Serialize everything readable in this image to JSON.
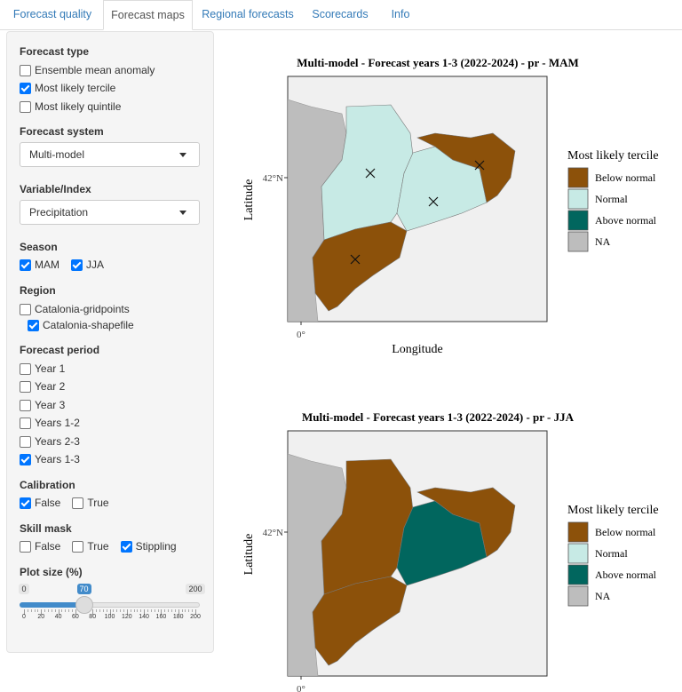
{
  "tabs": {
    "items": [
      "Forecast quality",
      "Forecast maps",
      "Regional forecasts",
      "Scorecards",
      "Info"
    ],
    "active": 1
  },
  "sidebar": {
    "groups": [
      {
        "label": "Forecast type",
        "options": [
          {
            "label": "Ensemble mean anomaly",
            "checked": false
          },
          {
            "label": "Most likely tercile",
            "checked": true
          },
          {
            "label": "Most likely quintile",
            "checked": false
          }
        ]
      },
      {
        "label": "Forecast system",
        "select": "Multi-model"
      },
      {
        "label": "Variable/Index",
        "select": "Precipitation"
      },
      {
        "label": "Season",
        "inline": true,
        "options": [
          {
            "label": "MAM",
            "checked": true
          },
          {
            "label": "JJA",
            "checked": true
          }
        ]
      },
      {
        "label": "Region",
        "options": [
          {
            "label": "Catalonia-gridpoints",
            "checked": false
          },
          {
            "label": "Catalonia-shapefile",
            "checked": true,
            "indented": true
          }
        ]
      },
      {
        "label": "Forecast period",
        "options": [
          {
            "label": "Year 1",
            "checked": false
          },
          {
            "label": "Year 2",
            "checked": false
          },
          {
            "label": "Year 3",
            "checked": false
          },
          {
            "label": "Years 1-2",
            "checked": false
          },
          {
            "label": "Years 2-3",
            "checked": false
          },
          {
            "label": "Years 1-3",
            "checked": true
          }
        ]
      },
      {
        "label": "Calibration",
        "inline": true,
        "options": [
          {
            "label": "False",
            "checked": true
          },
          {
            "label": "True",
            "checked": false
          }
        ]
      },
      {
        "label": "Skill mask",
        "inline": true,
        "options": [
          {
            "label": "False",
            "checked": false
          },
          {
            "label": "True",
            "checked": false
          },
          {
            "label": "Stippling",
            "checked": true
          }
        ]
      }
    ],
    "slider": {
      "label": "Plot size (%)",
      "min": 0,
      "max": 200,
      "value": 70,
      "ticks": [
        0,
        20,
        40,
        60,
        80,
        100,
        120,
        140,
        160,
        180,
        200
      ]
    }
  },
  "maps": [
    {
      "title": "Multi-model - Forecast years 1-3 (2022-2024) - pr - MAM",
      "ylabel": "Latitude",
      "xlabel": "Longitude",
      "lat_tick": "42°N",
      "lon_tick": "0°",
      "legend": {
        "title": "Most likely tercile",
        "items": [
          {
            "label": "Below normal",
            "color": "#8c510a"
          },
          {
            "label": "Normal",
            "color": "#c7eae5"
          },
          {
            "label": "Above normal",
            "color": "#01665e"
          },
          {
            "label": "NA",
            "color": "#bdbdbd"
          }
        ]
      }
    },
    {
      "title": "Multi-model - Forecast years 1-3 (2022-2024) - pr - JJA",
      "ylabel": "Latitude",
      "lat_tick": "42°N",
      "lon_tick": "0°",
      "legend": {
        "title": "Most likely tercile",
        "items": [
          {
            "label": "Below normal",
            "color": "#8c510a"
          },
          {
            "label": "Normal",
            "color": "#c7eae5"
          },
          {
            "label": "Above normal",
            "color": "#01665e"
          },
          {
            "label": "NA",
            "color": "#bdbdbd"
          }
        ]
      }
    }
  ]
}
